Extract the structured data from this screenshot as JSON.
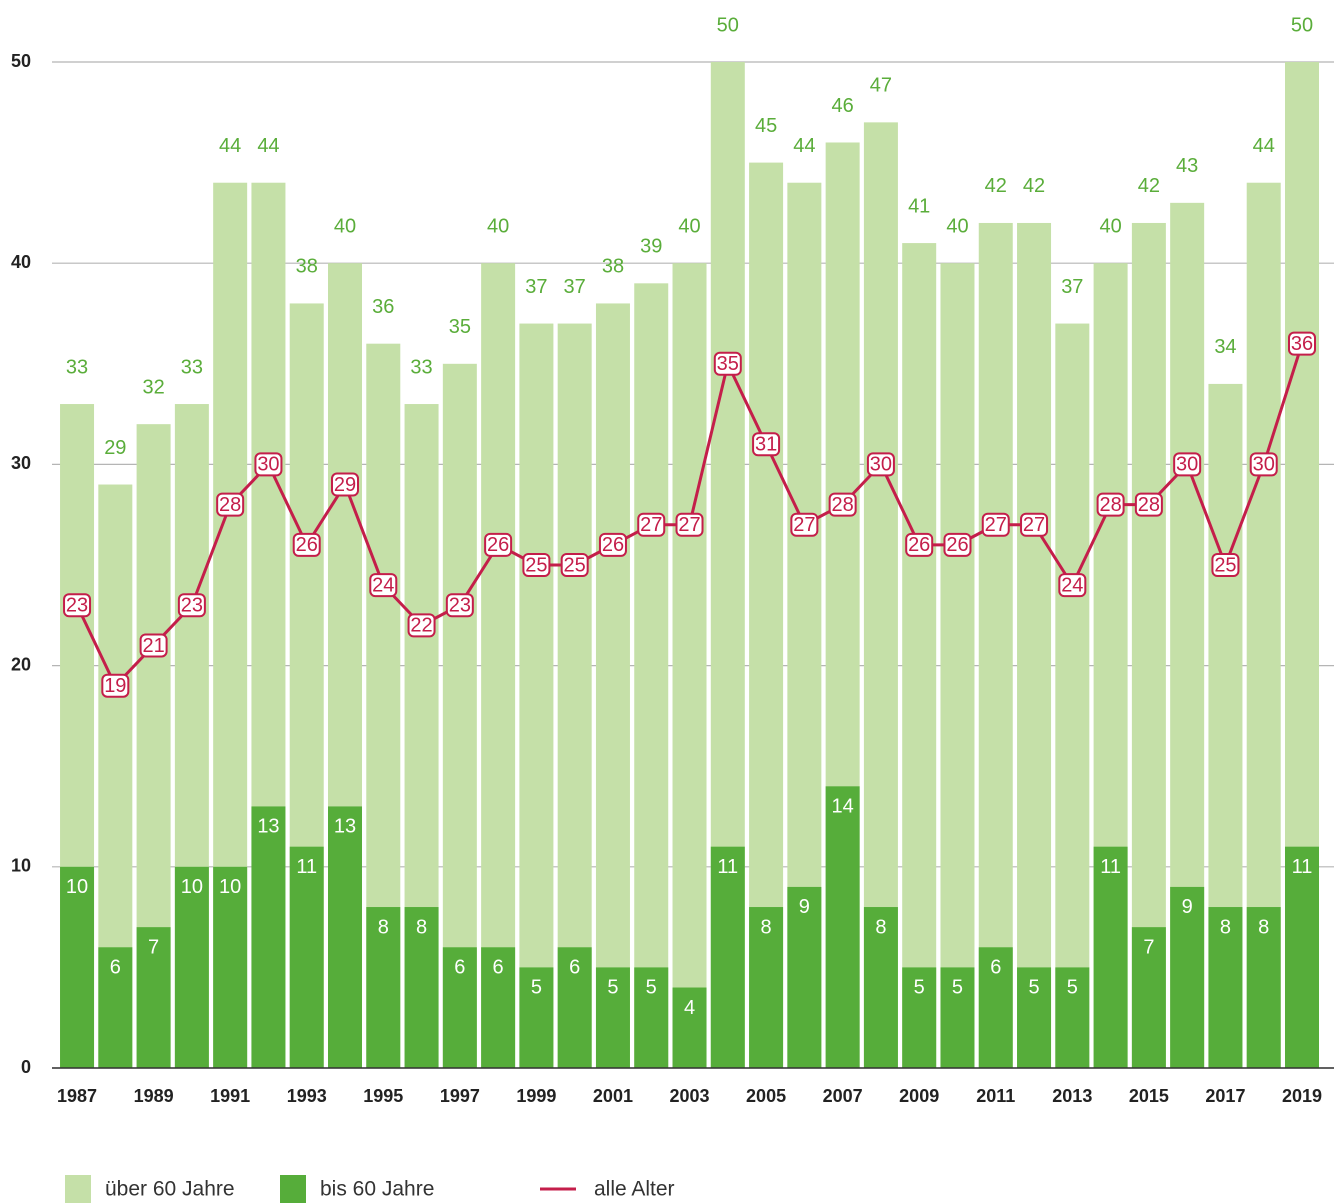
{
  "chart_data": {
    "type": "bar",
    "categories": [
      "1987",
      null,
      "1989",
      null,
      "1991",
      null,
      "1993",
      null,
      "1995",
      null,
      "1997",
      null,
      "1999",
      null,
      "2001",
      null,
      "2003",
      null,
      "2005",
      null,
      "2007",
      null,
      "2009",
      null,
      "2011",
      null,
      "2013",
      null,
      "2015",
      null,
      "2017",
      null,
      "2019"
    ],
    "series": [
      {
        "name": "über 60 Jahre",
        "color": "#c5e0a8",
        "label_color": "#5aad3a",
        "values": [
          33,
          29,
          32,
          33,
          44,
          44,
          38,
          40,
          36,
          33,
          35,
          40,
          37,
          37,
          38,
          39,
          40,
          50,
          45,
          44,
          46,
          47,
          41,
          40,
          42,
          42,
          37,
          40,
          42,
          43,
          34,
          44,
          50
        ]
      },
      {
        "name": "bis 60 Jahre",
        "color": "#56ad3a",
        "label_color": "#ffffff",
        "values": [
          10,
          6,
          7,
          10,
          10,
          13,
          11,
          13,
          8,
          8,
          6,
          6,
          5,
          6,
          5,
          5,
          4,
          11,
          8,
          9,
          14,
          8,
          5,
          5,
          6,
          5,
          5,
          11,
          7,
          9,
          8,
          8,
          11
        ]
      },
      {
        "name": "alle Alter",
        "type": "line",
        "color": "#c41e4a",
        "values": [
          23,
          19,
          21,
          23,
          28,
          30,
          26,
          29,
          24,
          22,
          23,
          26,
          25,
          25,
          26,
          27,
          27,
          35,
          31,
          27,
          28,
          30,
          26,
          26,
          27,
          27,
          24,
          28,
          28,
          30,
          25,
          30,
          36
        ]
      }
    ],
    "ylim": [
      0,
      50
    ],
    "yticks": [
      0,
      10,
      20,
      30,
      40,
      50
    ],
    "grid": true
  }
}
